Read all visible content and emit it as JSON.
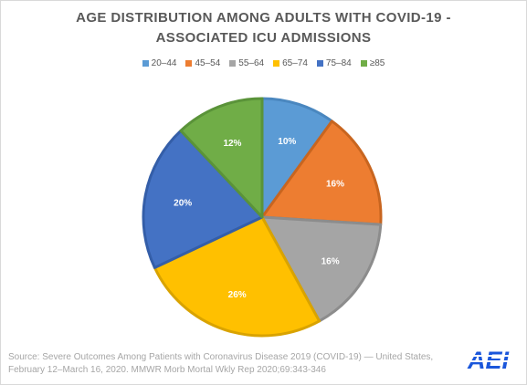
{
  "chart_data": {
    "type": "pie",
    "title_line1": "AGE DISTRIBUTION AMONG ADULTS WITH COVID-19 -",
    "title_line2": "ASSOCIATED ICU ADMISSIONS",
    "categories": [
      "20–44",
      "45–54",
      "55–64",
      "65–74",
      "75–84",
      "≥85"
    ],
    "values": [
      10,
      16,
      16,
      26,
      20,
      12
    ],
    "labels": [
      "10%",
      "16%",
      "16%",
      "26%",
      "20%",
      "12%"
    ],
    "colors": [
      "#5b9bd5",
      "#ed7d31",
      "#a5a5a5",
      "#ffc000",
      "#4472c4",
      "#70ad47"
    ],
    "edge_colors": [
      "#4a87bf",
      "#c8651f",
      "#8c8c8c",
      "#d9a300",
      "#345ea8",
      "#5a9339"
    ],
    "legend_position": "top"
  },
  "source_text": "Source: Severe Outcomes Among Patients with Coronavirus Disease 2019 (COVID-19) — United States, February 12–March 16, 2020. MMWR Morb Mortal Wkly Rep 2020;69:343-346",
  "logo_text": "AEI",
  "logo_color": "#1a56db"
}
